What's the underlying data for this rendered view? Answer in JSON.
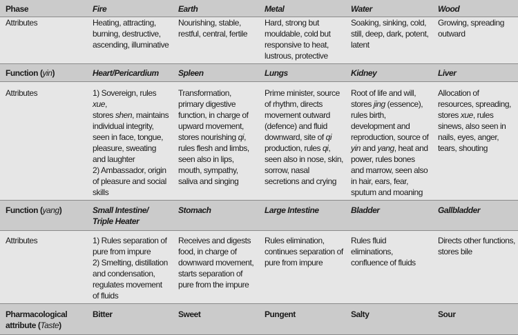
{
  "header": {
    "phase_label": "Phase",
    "phases": [
      "Fire",
      "Earth",
      "Metal",
      "Water",
      "Wood"
    ]
  },
  "phase_attributes": {
    "label": "Attributes",
    "fire": "Heating, attracting, burning, destructive, ascending, illuminative",
    "earth": "Nourishing, stable, restful, central, fertile",
    "metal": "Hard, strong but mouldable, cold but responsive to heat, lustrous, protective",
    "water": "Soaking, sinking, cold, still, deep, dark, potent, latent",
    "wood": "Growing, spreading outward"
  },
  "yin": {
    "label_prefix": "Function (",
    "label_em": "yin",
    "label_suffix": ")",
    "organs": [
      "Heart/Pericardium",
      "Spleen",
      "Lungs",
      "Kidney",
      "Liver"
    ]
  },
  "yin_attributes": {
    "label": "Attributes",
    "fire": [
      [
        "1) Sovereign, rules ",
        ""
      ],
      [
        "xue",
        "it"
      ],
      [
        ",\nstores ",
        ""
      ],
      [
        "shen",
        "it"
      ],
      [
        ", maintains individual integrity, seen in face, tongue, pleasure, sweating and laughter\n2) Ambassador, origin of pleasure and social skills",
        ""
      ]
    ],
    "earth": [
      [
        "Transformation, primary digestive function, in charge of upward movement, stores nourishing ",
        ""
      ],
      [
        "qi",
        "it"
      ],
      [
        ", rules flesh and limbs, seen also in lips, mouth, sympathy, saliva and singing",
        ""
      ]
    ],
    "metal": [
      [
        "Prime minister, source of rhythm, directs movement outward (defence) and fluid downward, site of ",
        ""
      ],
      [
        "qi",
        "it"
      ],
      [
        " production, rules ",
        ""
      ],
      [
        "qi",
        "it"
      ],
      [
        ", seen also in nose, skin, sorrow, nasal secretions and crying",
        ""
      ]
    ],
    "water": [
      [
        "Root of life and will, stores ",
        ""
      ],
      [
        "jing",
        "it"
      ],
      [
        " (essence), rules birth, development and reproduction, source of ",
        ""
      ],
      [
        "yin",
        "it"
      ],
      [
        " and ",
        ""
      ],
      [
        "yang",
        "it"
      ],
      [
        ", heat and power, rules bones and marrow, seen also in hair, ears, fear, sputum and moaning",
        ""
      ]
    ],
    "wood": [
      [
        "Allocation of resources, spreading, stores ",
        ""
      ],
      [
        "xue",
        "it"
      ],
      [
        ", rules sinews, also seen in nails, eyes, anger, tears, shouting",
        ""
      ]
    ]
  },
  "yang": {
    "label_prefix": "Function (",
    "label_em": "yang",
    "label_suffix": ")",
    "organs": [
      "Small Intestine/\nTriple Heater",
      "Stomach",
      "Large Intestine",
      "Bladder",
      "Gallbladder"
    ]
  },
  "yang_attributes": {
    "label": "Attributes",
    "fire": "1) Rules separation of pure from impure\n2) Smelting, distillation and condensation, regulates movement of fluids",
    "earth": "Receives and digests food, in charge of downward movement, starts separation of pure from the impure",
    "metal": "Rules elimination, continues separation of pure from impure",
    "water": "Rules fluid eliminations, confluence of fluids",
    "wood": "Directs other functions, stores bile"
  },
  "taste": {
    "label_line1": "Pharmacological",
    "label_line2_prefix": "attribute (",
    "label_line2_em": "Taste",
    "label_line2_suffix": ")",
    "values": [
      "Bitter",
      "Sweet",
      "Pungent",
      "Salty",
      "Sour"
    ]
  }
}
